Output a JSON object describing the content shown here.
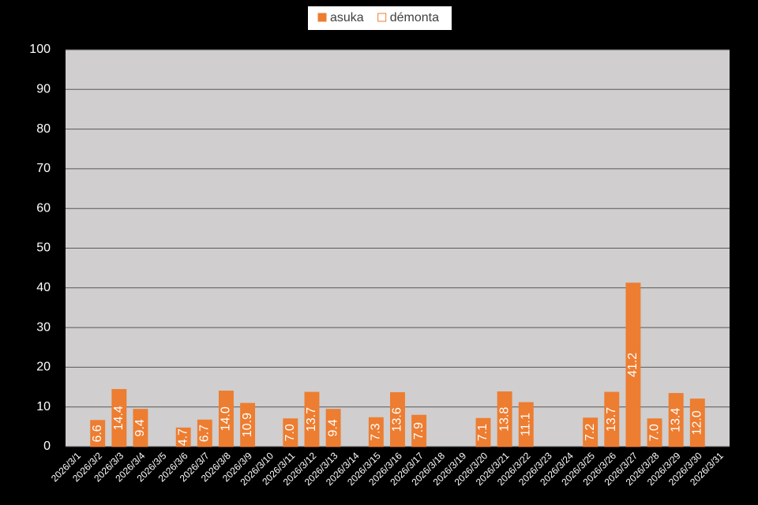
{
  "chart_data": {
    "type": "bar",
    "categories": [
      "2026/3/1",
      "2026/3/2",
      "2026/3/3",
      "2026/3/4",
      "2026/3/5",
      "2026/3/6",
      "2026/3/7",
      "2026/3/8",
      "2026/3/9",
      "2026/3/10",
      "2026/3/11",
      "2026/3/12",
      "2026/3/13",
      "2026/3/14",
      "2026/3/15",
      "2026/3/16",
      "2026/3/17",
      "2026/3/18",
      "2026/3/19",
      "2026/3/20",
      "2026/3/21",
      "2026/3/22",
      "2026/3/23",
      "2026/3/24",
      "2026/3/25",
      "2026/3/26",
      "2026/3/27",
      "2026/3/28",
      "2026/3/29",
      "2026/3/30",
      "2026/3/31"
    ],
    "series": [
      {
        "name": "asuka",
        "color": "#ed7d31",
        "fill": "#ed7d31",
        "values": [
          null,
          6.6,
          14.4,
          9.4,
          null,
          4.7,
          6.7,
          14.0,
          10.9,
          null,
          7.0,
          13.7,
          9.4,
          null,
          7.3,
          13.6,
          7.9,
          null,
          null,
          7.1,
          13.8,
          11.1,
          null,
          null,
          7.2,
          13.7,
          41.2,
          7.0,
          13.4,
          12.0,
          null
        ],
        "value_labels": [
          null,
          "6.6",
          "14.4",
          "9.4",
          null,
          "4.7",
          "6.7",
          "14.0",
          "10.9",
          null,
          "7.0",
          "13.7",
          "9.4",
          null,
          "7.3",
          "13.6",
          "7.9",
          null,
          null,
          "7.1",
          "13.8",
          "11.1",
          null,
          null,
          "7.2",
          "13.7",
          "41.2",
          "7.0",
          "13.4",
          "12.0",
          null
        ]
      },
      {
        "name": "démonta",
        "color": "#ed7d31",
        "fill": "#ffffff",
        "values": [
          null,
          null,
          null,
          null,
          null,
          null,
          null,
          null,
          null,
          null,
          null,
          null,
          null,
          null,
          null,
          null,
          null,
          null,
          null,
          null,
          null,
          null,
          null,
          null,
          null,
          null,
          null,
          null,
          null,
          null,
          null
        ]
      }
    ],
    "ylim": [
      0,
      100
    ],
    "yticks": [
      0,
      10,
      20,
      30,
      40,
      50,
      60,
      70,
      80,
      90,
      100
    ],
    "grid": true
  }
}
